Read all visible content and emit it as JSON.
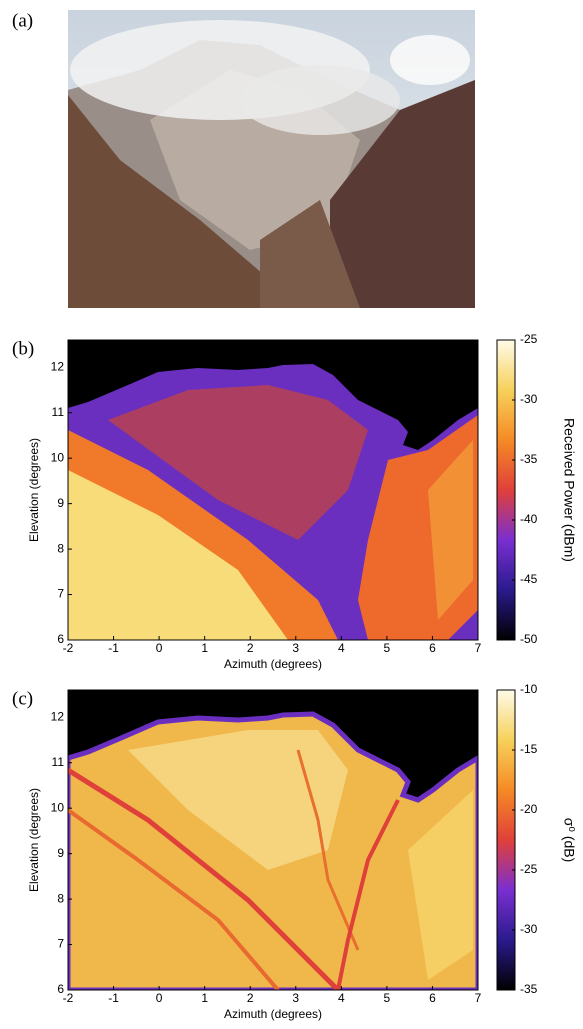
{
  "figure": {
    "photo_label": "(a)"
  },
  "chart_data": [
    {
      "type": "heatmap",
      "panel_label": "(b)",
      "xlabel": "Azimuth (degrees)",
      "ylabel": "Elevation (degrees)",
      "xlim": [
        -2,
        7
      ],
      "ylim": [
        6,
        12.6
      ],
      "xticks": [
        -2,
        -1,
        0,
        1,
        2,
        3,
        4,
        5,
        6,
        7
      ],
      "yticks": [
        6,
        7,
        8,
        9,
        10,
        11,
        12
      ],
      "colorbar": {
        "label": "Received Power (dBm)",
        "lim": [
          -50,
          -25
        ],
        "ticks": [
          -50,
          -45,
          -40,
          -35,
          -30,
          -25
        ],
        "colors": [
          "#000000",
          "#2a1a8c",
          "#7a2fd0",
          "#e0403a",
          "#f58a25",
          "#f6d15a",
          "#fffbe8"
        ]
      }
    },
    {
      "type": "heatmap",
      "panel_label": "(c)",
      "xlabel": "Azimuth (degrees)",
      "ylabel": "Elevation (degrees)",
      "xlim": [
        -2,
        7
      ],
      "ylim": [
        6,
        12.6
      ],
      "xticks": [
        -2,
        -1,
        0,
        1,
        2,
        3,
        4,
        5,
        6,
        7
      ],
      "yticks": [
        6,
        7,
        8,
        9,
        10,
        11,
        12
      ],
      "colorbar": {
        "label": "σ⁰ (dB)",
        "lim": [
          -35,
          -10
        ],
        "ticks": [
          -35,
          -30,
          -25,
          -20,
          -15,
          -10
        ],
        "colors": [
          "#000000",
          "#2a1a8c",
          "#7a2fd0",
          "#e0403a",
          "#f58a25",
          "#f6d15a",
          "#fffbe8"
        ]
      }
    }
  ]
}
